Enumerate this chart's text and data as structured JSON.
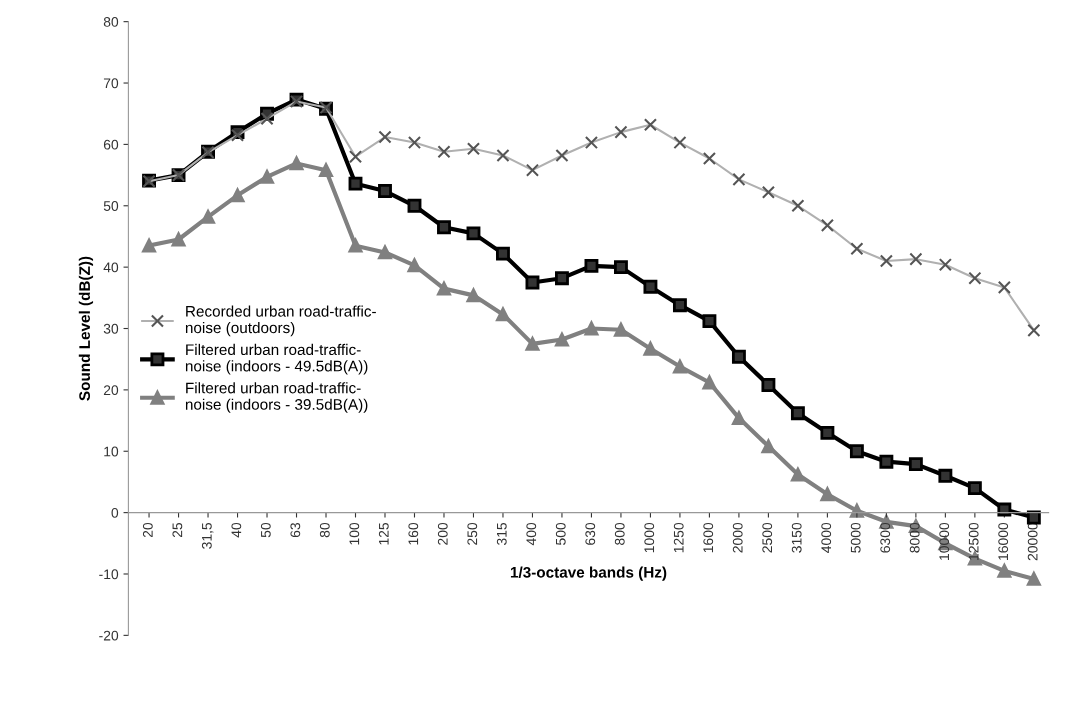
{
  "chart_data": {
    "type": "line",
    "xlabel": "1/3-octave bands (Hz)",
    "ylabel": "Sound Level (dB(Z))",
    "categories": [
      "20",
      "25",
      "31,5",
      "40",
      "50",
      "63",
      "80",
      "100",
      "125",
      "160",
      "200",
      "250",
      "315",
      "400",
      "500",
      "630",
      "800",
      "1000",
      "1250",
      "1600",
      "2000",
      "2500",
      "3150",
      "4000",
      "5000",
      "6300",
      "8000",
      "10000",
      "12500",
      "16000",
      "20000"
    ],
    "series": [
      {
        "name": "Recorded urban road-traffic-noise (outdoors)",
        "color": "#b0b0b0",
        "marker": "cross",
        "values": [
          54,
          55,
          58.7,
          61.5,
          64.2,
          67,
          66,
          58,
          61.2,
          60.3,
          58.8,
          59.3,
          58.2,
          55.8,
          58.2,
          60.3,
          62,
          63.2,
          60.3,
          57.7,
          54.3,
          52.2,
          50,
          46.8,
          43,
          41,
          41.3,
          40.4,
          38.2,
          36.7,
          29.7
        ]
      },
      {
        "name": "Filtered urban road-traffic-noise (indoors - 49.5dB(A))",
        "color": "#000000",
        "marker": "square",
        "values": [
          54.1,
          55,
          58.8,
          62,
          65,
          67.3,
          65.8,
          53.6,
          52.4,
          50,
          46.5,
          45.5,
          42.2,
          37.5,
          38.2,
          40.2,
          40,
          36.8,
          33.8,
          31.2,
          25.4,
          20.8,
          16.2,
          13,
          10,
          8.3,
          7.9,
          6,
          4,
          0.5,
          -0.8
        ]
      },
      {
        "name": "Filtered urban road-traffic-noise (indoors - 39.5dB(A))",
        "color": "#808080",
        "marker": "triangle",
        "values": [
          43.5,
          44.5,
          48.2,
          51.7,
          54.7,
          56.9,
          55.8,
          43.5,
          42.4,
          40.3,
          36.5,
          35.4,
          32.3,
          27.5,
          28.2,
          30,
          29.8,
          26.7,
          23.8,
          21.2,
          15.4,
          10.8,
          6.2,
          3,
          0.3,
          -1.5,
          -2.2,
          -5,
          -7.5,
          -9.5,
          -10.8
        ]
      }
    ],
    "ylim": [
      -20,
      80
    ],
    "yticks": [
      -20,
      -10,
      0,
      10,
      20,
      30,
      40,
      50,
      60,
      70,
      80
    ],
    "grid": false,
    "legend": "center left"
  }
}
